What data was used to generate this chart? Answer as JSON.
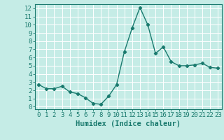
{
  "x": [
    0,
    1,
    2,
    3,
    4,
    5,
    6,
    7,
    8,
    9,
    10,
    11,
    12,
    13,
    14,
    15,
    16,
    17,
    18,
    19,
    20,
    21,
    22,
    23
  ],
  "y": [
    2.7,
    2.2,
    2.2,
    2.5,
    1.8,
    1.6,
    1.1,
    0.4,
    0.3,
    1.3,
    2.7,
    6.7,
    9.6,
    12.1,
    10.0,
    6.5,
    7.3,
    5.5,
    5.0,
    5.0,
    5.1,
    5.3,
    4.8,
    4.7
  ],
  "line_color": "#1a7a6e",
  "marker": "D",
  "marker_size": 2.2,
  "line_width": 1.0,
  "bg_color": "#c5ece6",
  "grid_color": "#ffffff",
  "xlabel": "Humidex (Indice chaleur)",
  "xlabel_fontsize": 7.5,
  "xlabel_style": "bold",
  "tick_fontsize": 6.5,
  "ylim": [
    -0.3,
    12.5
  ],
  "xlim": [
    -0.5,
    23.5
  ],
  "yticks": [
    0,
    1,
    2,
    3,
    4,
    5,
    6,
    7,
    8,
    9,
    10,
    11,
    12
  ],
  "xticks": [
    0,
    1,
    2,
    3,
    4,
    5,
    6,
    7,
    8,
    9,
    10,
    11,
    12,
    13,
    14,
    15,
    16,
    17,
    18,
    19,
    20,
    21,
    22,
    23
  ],
  "tick_color": "#1a7a6e",
  "axis_color": "#1a7a6e",
  "spine_color": "#1a7a6e"
}
